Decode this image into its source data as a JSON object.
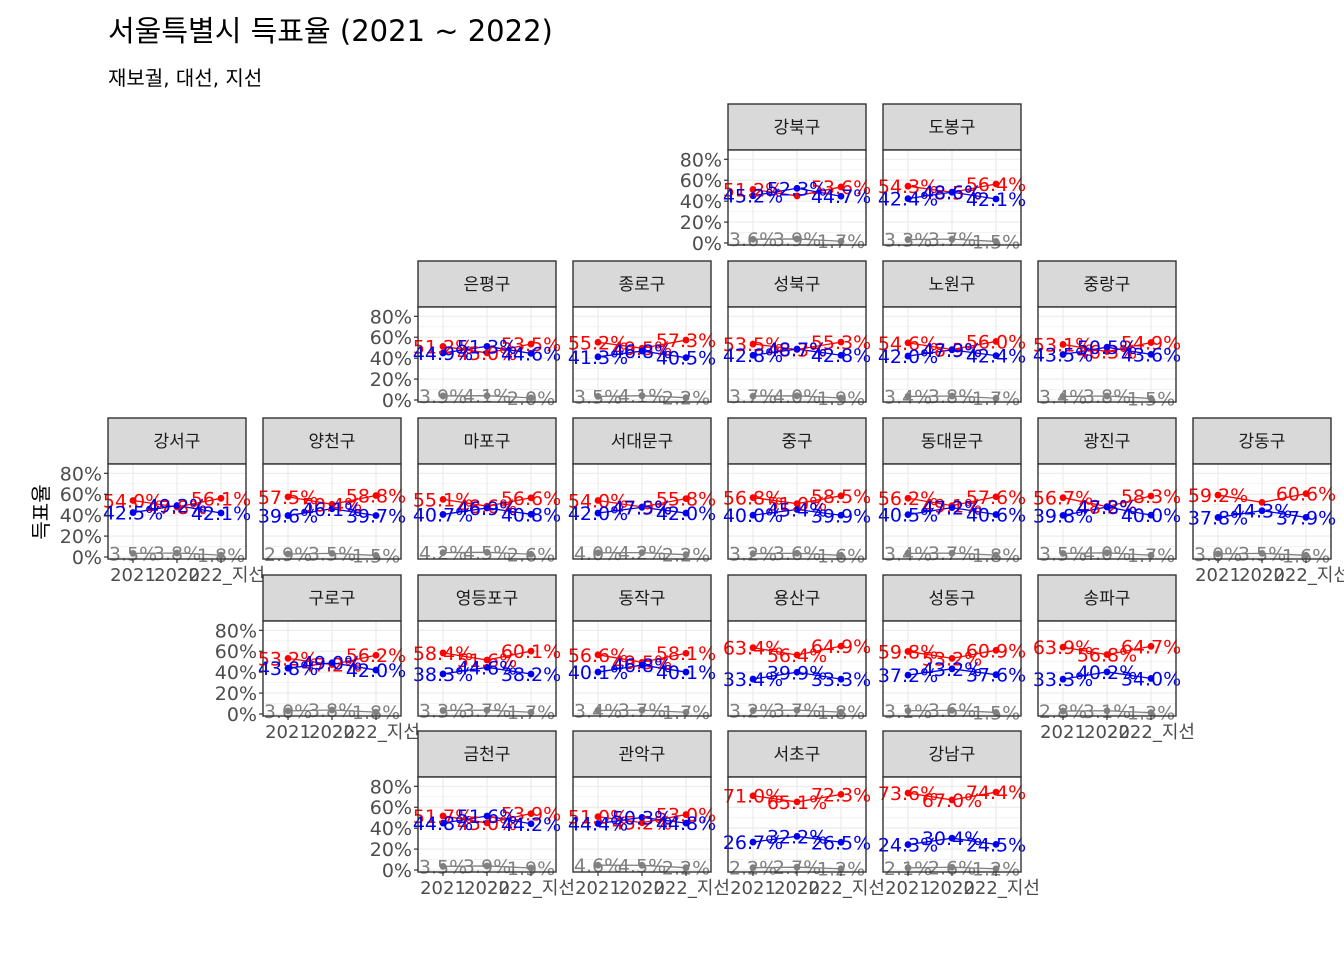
{
  "title": "서울특별시 득표율 (2021 ~ 2022)",
  "subtitle": "재보궐, 대선, 지선",
  "ylabel": "득표율",
  "colors": {
    "red": "#ff0000",
    "blue": "#0000ee",
    "gray": "#808080"
  },
  "chart_data": {
    "type": "line",
    "layout": "facet-grid-geofacet",
    "x": [
      "2021",
      "2022",
      "2022_지선"
    ],
    "x_tick_labels": [
      "2021",
      "2022",
      "2022_지선"
    ],
    "y_ticks": [
      "0%",
      "20%",
      "40%",
      "60%",
      "80%"
    ],
    "ylim": [
      0,
      100
    ],
    "grid": true,
    "series_order": [
      "red",
      "blue",
      "gray"
    ],
    "panels": [
      {
        "name": "강북구",
        "row": 0,
        "col": 4,
        "red": [
          51.2,
          45.0,
          53.6
        ],
        "blue": [
          45.2,
          52.3,
          44.7
        ],
        "gray": [
          3.6,
          3.9,
          1.7
        ],
        "red_labels": [
          "51.2%",
          "",
          "53.6%"
        ],
        "blue_labels": [
          "45.2%",
          "52.3%",
          "44.7%"
        ],
        "gray_labels": [
          "3.6%",
          "3.9%",
          "1.7%"
        ]
      },
      {
        "name": "도봉구",
        "row": 0,
        "col": 5,
        "red": [
          54.3,
          48.5,
          56.4
        ],
        "blue": [
          42.4,
          48.6,
          42.1
        ],
        "gray": [
          3.3,
          3.7,
          1.5
        ],
        "red_labels": [
          "54.3%",
          "48.5%",
          "56.4%"
        ],
        "blue_labels": [
          "42.4%",
          "48.6%",
          "42.1%"
        ],
        "gray_labels": [
          "3.3%",
          "3.7%",
          "1.5%"
        ]
      },
      {
        "name": "은평구",
        "row": 1,
        "col": 2,
        "red": [
          51.2,
          45.0,
          53.5
        ],
        "blue": [
          44.9,
          51.3,
          44.6
        ],
        "gray": [
          3.9,
          4.1,
          2.0
        ],
        "red_labels": [
          "51.2%",
          "45.0%",
          "53.5%"
        ],
        "blue_labels": [
          "44.9%",
          "51.3%",
          "44.6%"
        ],
        "gray_labels": [
          "3.9%",
          "4.1%",
          "2.0%"
        ]
      },
      {
        "name": "종로구",
        "row": 1,
        "col": 3,
        "red": [
          55.2,
          49.5,
          57.3
        ],
        "blue": [
          41.3,
          46.8,
          40.5
        ],
        "gray": [
          3.5,
          4.1,
          2.2
        ],
        "red_labels": [
          "55.2%",
          "49.5%",
          "57.3%"
        ],
        "blue_labels": [
          "41.3%",
          "46.8%",
          "40.5%"
        ],
        "gray_labels": [
          "3.5%",
          "4.1%",
          "2.2%"
        ]
      },
      {
        "name": "성북구",
        "row": 1,
        "col": 4,
        "red": [
          53.5,
          48.3,
          55.3
        ],
        "blue": [
          42.8,
          48.7,
          42.8
        ],
        "gray": [
          3.7,
          4.0,
          1.9
        ],
        "red_labels": [
          "53.5%",
          "48.3%",
          "55.3%"
        ],
        "blue_labels": [
          "42.8%",
          "48.7%",
          "42.8%"
        ],
        "gray_labels": [
          "3.7%",
          "4.0%",
          "1.9%"
        ]
      },
      {
        "name": "노원구",
        "row": 1,
        "col": 5,
        "red": [
          54.6,
          48.3,
          56.0
        ],
        "blue": [
          42.0,
          47.9,
          42.4
        ],
        "gray": [
          3.4,
          3.8,
          1.7
        ],
        "red_labels": [
          "54.6%",
          "48.3%",
          "56.0%"
        ],
        "blue_labels": [
          "42.0%",
          "47.9%",
          "42.4%"
        ],
        "gray_labels": [
          "3.4%",
          "3.8%",
          "1.7%"
        ]
      },
      {
        "name": "중랑구",
        "row": 1,
        "col": 6,
        "red": [
          53.1,
          46.3,
          54.9
        ],
        "blue": [
          43.5,
          50.5,
          43.6
        ],
        "gray": [
          3.4,
          3.8,
          1.5
        ],
        "red_labels": [
          "53.1%",
          "46.3%",
          "54.9%"
        ],
        "blue_labels": [
          "43.5%",
          "50.5%",
          "43.6%"
        ],
        "gray_labels": [
          "3.4%",
          "3.8%",
          "1.5%"
        ]
      },
      {
        "name": "강서구",
        "row": 2,
        "col": 0,
        "red": [
          54.0,
          47.8,
          56.1
        ],
        "blue": [
          42.5,
          49.2,
          42.1
        ],
        "gray": [
          3.5,
          3.8,
          1.8
        ],
        "red_labels": [
          "54.0%",
          "47.8%",
          "56.1%"
        ],
        "blue_labels": [
          "42.5%",
          "49.2%",
          "42.1%"
        ],
        "gray_labels": [
          "3.5%",
          "3.8%",
          "1.8%"
        ]
      },
      {
        "name": "양천구",
        "row": 2,
        "col": 1,
        "red": [
          57.5,
          50.4,
          58.8
        ],
        "blue": [
          39.6,
          46.1,
          39.7
        ],
        "gray": [
          2.9,
          3.5,
          1.5
        ],
        "red_labels": [
          "57.5%",
          "50.4%",
          "58.8%"
        ],
        "blue_labels": [
          "39.6%",
          "46.1%",
          "39.7%"
        ],
        "gray_labels": [
          "2.9%",
          "3.5%",
          "1.5%"
        ]
      },
      {
        "name": "마포구",
        "row": 2,
        "col": 2,
        "red": [
          55.1,
          48.6,
          56.6
        ],
        "blue": [
          40.7,
          46.9,
          40.8
        ],
        "gray": [
          4.2,
          4.5,
          2.6
        ],
        "red_labels": [
          "55.1%",
          "48.6%",
          "56.6%"
        ],
        "blue_labels": [
          "40.7%",
          "46.9%",
          "40.8%"
        ],
        "gray_labels": [
          "4.2%",
          "4.5%",
          "2.6%"
        ]
      },
      {
        "name": "서대문구",
        "row": 2,
        "col": 3,
        "red": [
          54.0,
          47.9,
          55.8
        ],
        "blue": [
          42.0,
          47.5,
          42.0
        ],
        "gray": [
          4.0,
          4.2,
          2.2
        ],
        "red_labels": [
          "54.0%",
          "47.9%",
          "55.8%"
        ],
        "blue_labels": [
          "42.0%",
          "47.5%",
          "42.0%"
        ],
        "gray_labels": [
          "4.0%",
          "4.2%",
          "2.2%"
        ]
      },
      {
        "name": "중구",
        "row": 2,
        "col": 4,
        "red": [
          56.8,
          51.0,
          58.5
        ],
        "blue": [
          40.0,
          45.4,
          39.9
        ],
        "gray": [
          3.2,
          3.6,
          1.6
        ],
        "red_labels": [
          "56.8%",
          "51.0%",
          "58.5%"
        ],
        "blue_labels": [
          "40.0%",
          "45.4%",
          "39.9%"
        ],
        "gray_labels": [
          "3.2%",
          "3.6%",
          "1.6%"
        ]
      },
      {
        "name": "동대문구",
        "row": 2,
        "col": 5,
        "red": [
          56.2,
          49.1,
          57.6
        ],
        "blue": [
          40.5,
          47.2,
          40.6
        ],
        "gray": [
          3.4,
          3.7,
          1.8
        ],
        "red_labels": [
          "56.2%",
          "49.1%",
          "57.6%"
        ],
        "blue_labels": [
          "40.5%",
          "47.2%",
          "40.6%"
        ],
        "gray_labels": [
          "3.4%",
          "3.7%",
          "1.8%"
        ]
      },
      {
        "name": "광진구",
        "row": 2,
        "col": 6,
        "red": [
          56.7,
          48.2,
          58.3
        ],
        "blue": [
          39.8,
          47.8,
          40.0
        ],
        "gray": [
          3.5,
          4.0,
          1.7
        ],
        "red_labels": [
          "56.7%",
          "48.2%",
          "58.3%"
        ],
        "blue_labels": [
          "39.8%",
          "47.8%",
          "40.0%"
        ],
        "gray_labels": [
          "3.5%",
          "4.0%",
          "1.7%"
        ]
      },
      {
        "name": "강동구",
        "row": 2,
        "col": 7,
        "red": [
          59.2,
          52.2,
          60.6
        ],
        "blue": [
          37.8,
          44.3,
          37.9
        ],
        "gray": [
          3.0,
          3.5,
          1.6
        ],
        "red_labels": [
          "59.2%",
          "",
          "60.6%"
        ],
        "blue_labels": [
          "37.8%",
          "44.3%",
          "37.9%"
        ],
        "gray_labels": [
          "3.0%",
          "3.5%",
          "1.6%"
        ]
      },
      {
        "name": "구로구",
        "row": 3,
        "col": 1,
        "red": [
          53.2,
          47.2,
          56.2
        ],
        "blue": [
          43.8,
          49.0,
          42.0
        ],
        "gray": [
          3.0,
          3.8,
          1.8
        ],
        "red_labels": [
          "53.2%",
          "47.2%",
          "56.2%"
        ],
        "blue_labels": [
          "43.8%",
          "49.0%",
          "42.0%"
        ],
        "gray_labels": [
          "3.0%",
          "3.8%",
          "1.8%"
        ]
      },
      {
        "name": "영등포구",
        "row": 3,
        "col": 2,
        "red": [
          58.4,
          51.6,
          60.1
        ],
        "blue": [
          38.3,
          44.6,
          38.2
        ],
        "gray": [
          3.3,
          3.7,
          1.7
        ],
        "red_labels": [
          "58.4%",
          "51.6%",
          "60.1%"
        ],
        "blue_labels": [
          "38.3%",
          "44.6%",
          "38.2%"
        ],
        "gray_labels": [
          "3.3%",
          "3.7%",
          "1.7%"
        ]
      },
      {
        "name": "동작구",
        "row": 3,
        "col": 3,
        "red": [
          56.6,
          49.5,
          58.1
        ],
        "blue": [
          40.1,
          46.8,
          40.1
        ],
        "gray": [
          3.4,
          3.7,
          1.7
        ],
        "red_labels": [
          "56.6%",
          "49.5%",
          "58.1%"
        ],
        "blue_labels": [
          "40.1%",
          "46.8%",
          "40.1%"
        ],
        "gray_labels": [
          "3.4%",
          "3.7%",
          "1.7%"
        ]
      },
      {
        "name": "용산구",
        "row": 3,
        "col": 4,
        "red": [
          63.4,
          56.4,
          64.9
        ],
        "blue": [
          33.4,
          39.9,
          33.3
        ],
        "gray": [
          3.2,
          3.7,
          1.8
        ],
        "red_labels": [
          "63.4%",
          "56.4%",
          "64.9%"
        ],
        "blue_labels": [
          "33.4%",
          "39.9%",
          "33.3%"
        ],
        "gray_labels": [
          "3.2%",
          "3.7%",
          "1.8%"
        ]
      },
      {
        "name": "성동구",
        "row": 3,
        "col": 5,
        "red": [
          59.8,
          53.2,
          60.9
        ],
        "blue": [
          37.2,
          43.2,
          37.6
        ],
        "gray": [
          3.1,
          3.6,
          1.5
        ],
        "red_labels": [
          "59.8%",
          "53.2%",
          "60.9%"
        ],
        "blue_labels": [
          "37.2%",
          "43.2%",
          "37.6%"
        ],
        "gray_labels": [
          "3.1%",
          "3.6%",
          "1.5%"
        ]
      },
      {
        "name": "송파구",
        "row": 3,
        "col": 6,
        "red": [
          63.9,
          56.8,
          64.7
        ],
        "blue": [
          33.3,
          40.2,
          34.0
        ],
        "gray": [
          2.8,
          3.1,
          1.3
        ],
        "red_labels": [
          "63.9%",
          "56.8%",
          "64.7%"
        ],
        "blue_labels": [
          "33.3%",
          "40.2%",
          "34.0%"
        ],
        "gray_labels": [
          "2.8%",
          "3.1%",
          "1.3%"
        ]
      },
      {
        "name": "금천구",
        "row": 4,
        "col": 2,
        "red": [
          51.7,
          45.0,
          53.9
        ],
        "blue": [
          44.8,
          51.6,
          44.2
        ],
        "gray": [
          3.5,
          3.9,
          1.9
        ],
        "red_labels": [
          "51.7%",
          "45.0%",
          "53.9%"
        ],
        "blue_labels": [
          "44.8%",
          "51.6%",
          "44.2%"
        ],
        "gray_labels": [
          "3.5%",
          "3.9%",
          "1.9%"
        ]
      },
      {
        "name": "관악구",
        "row": 4,
        "col": 3,
        "red": [
          51.0,
          45.2,
          53.0
        ],
        "blue": [
          44.4,
          50.3,
          44.8
        ],
        "gray": [
          4.6,
          4.5,
          2.2
        ],
        "red_labels": [
          "51.0%",
          "45.2%",
          "53.0%"
        ],
        "blue_labels": [
          "44.4%",
          "50.3%",
          "44.8%"
        ],
        "gray_labels": [
          "4.6%",
          "4.5%",
          "2.2%"
        ]
      },
      {
        "name": "서초구",
        "row": 4,
        "col": 4,
        "red": [
          71.0,
          65.1,
          72.3
        ],
        "blue": [
          26.7,
          32.2,
          26.5
        ],
        "gray": [
          2.2,
          2.7,
          1.2
        ],
        "red_labels": [
          "71.0%",
          "65.1%",
          "72.3%"
        ],
        "blue_labels": [
          "26.7%",
          "32.2%",
          "26.5%"
        ],
        "gray_labels": [
          "2.2%",
          "2.7%",
          "1.2%"
        ]
      },
      {
        "name": "강남구",
        "row": 4,
        "col": 5,
        "red": [
          73.6,
          67.0,
          74.4
        ],
        "blue": [
          24.3,
          30.4,
          24.5
        ],
        "gray": [
          2.1,
          2.6,
          1.2
        ],
        "red_labels": [
          "73.6%",
          "67.0%",
          "74.4%"
        ],
        "blue_labels": [
          "24.3%",
          "30.4%",
          "24.5%"
        ],
        "gray_labels": [
          "2.1%",
          "2.6%",
          "1.2%"
        ]
      }
    ]
  }
}
